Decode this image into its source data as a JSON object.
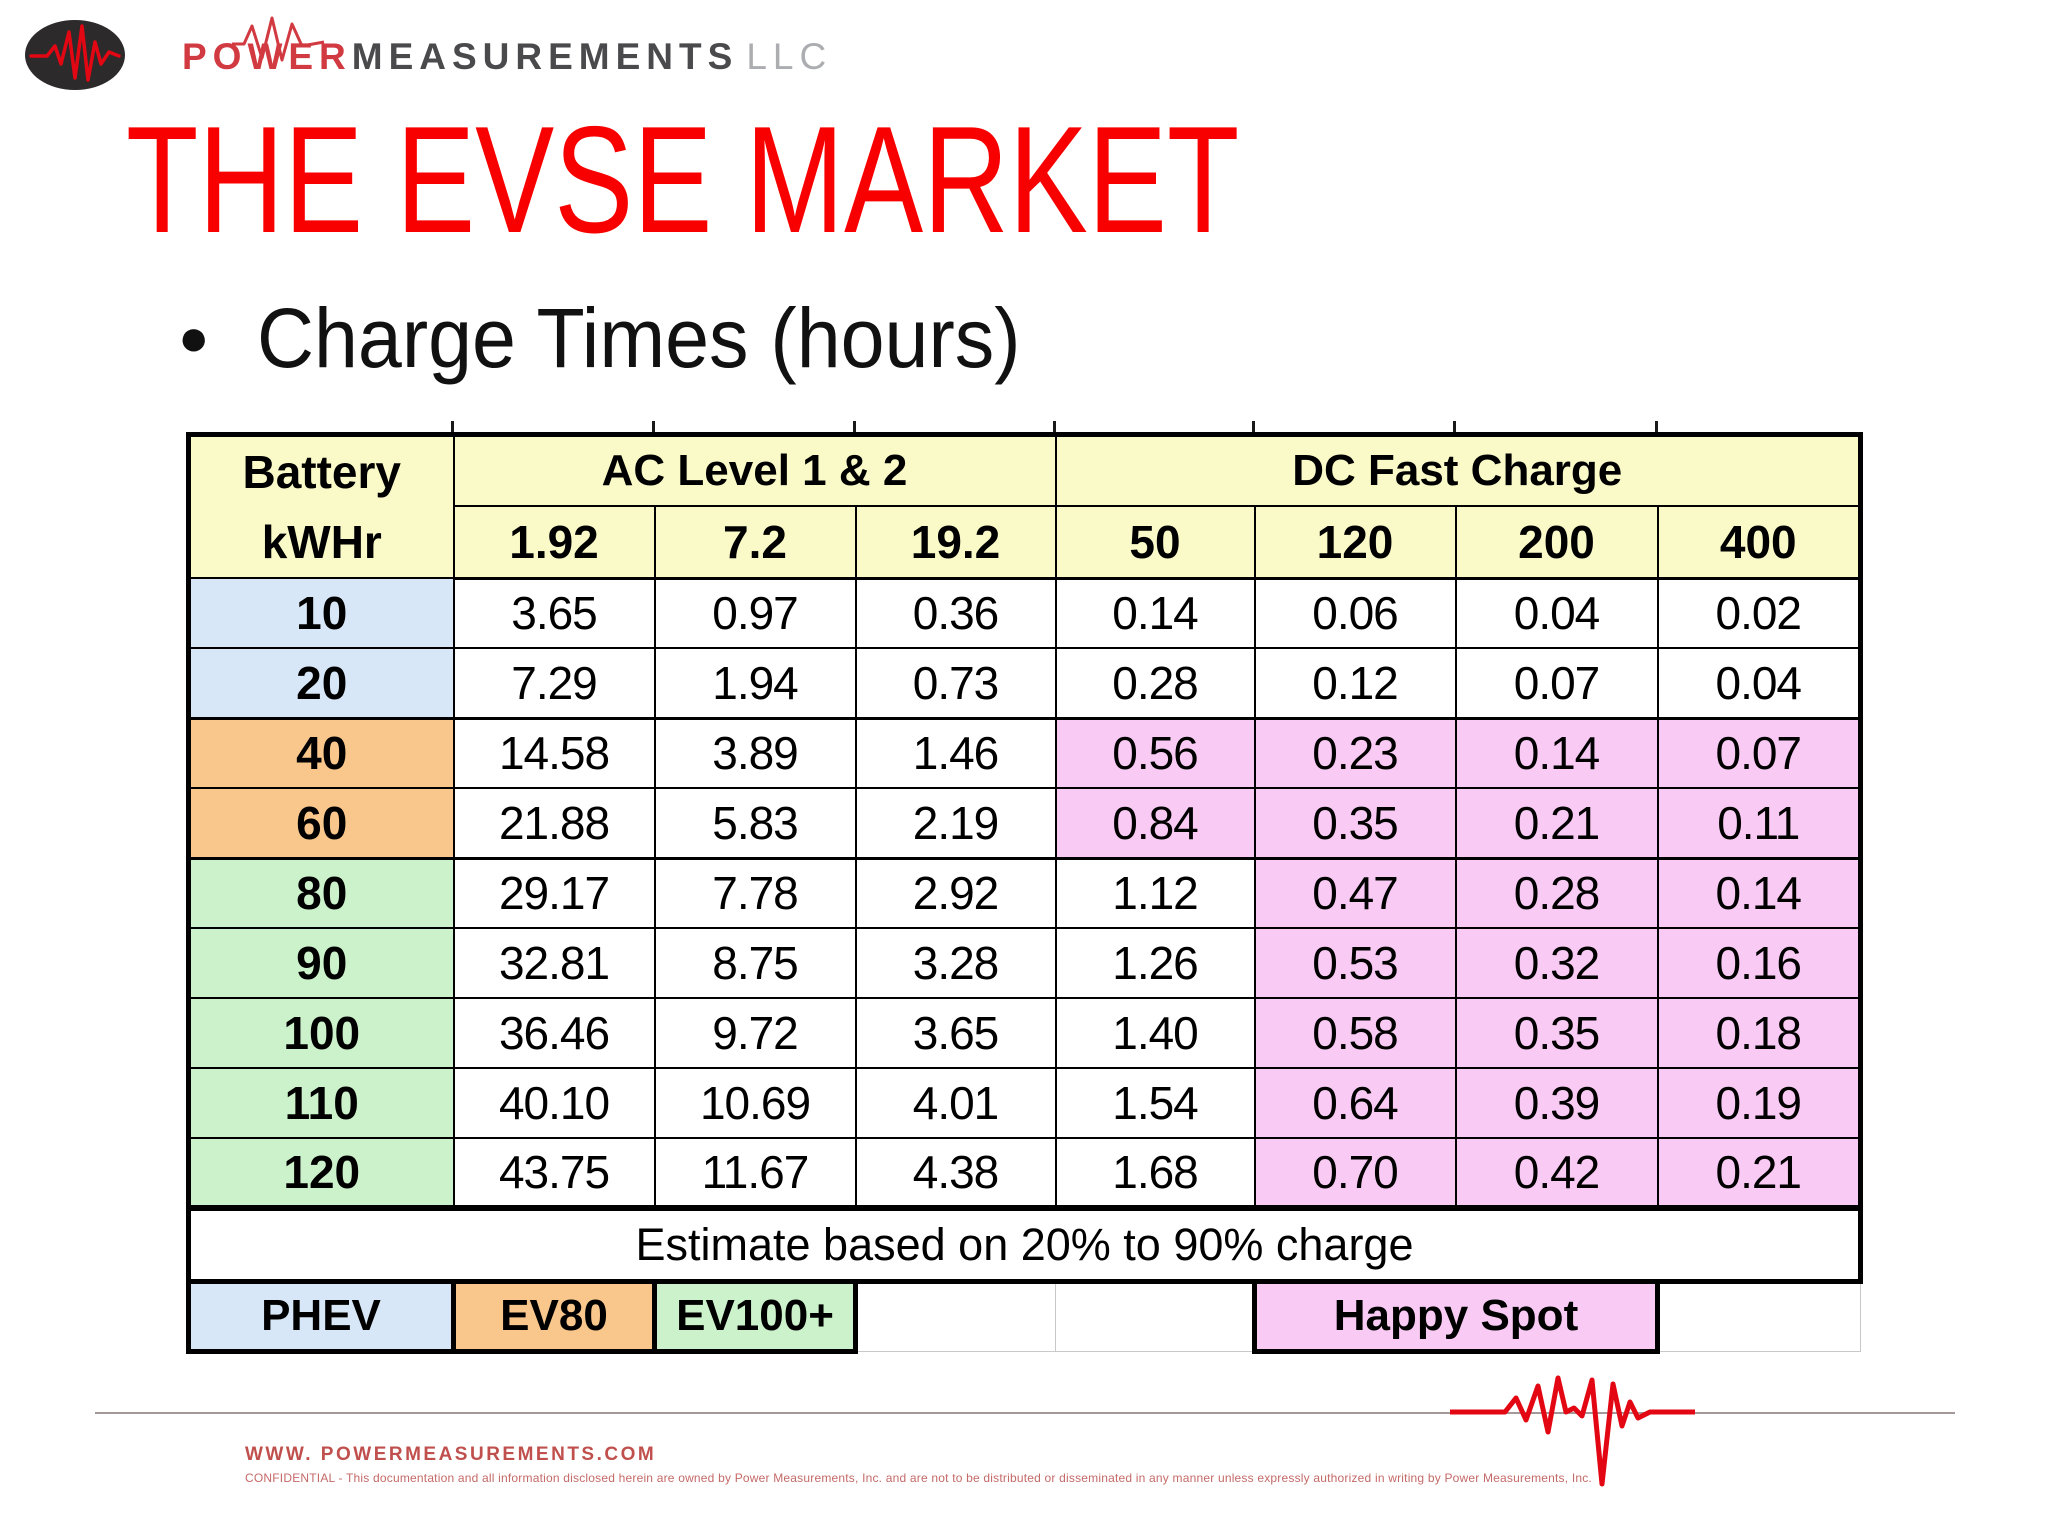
{
  "logo": {
    "power": "POWER",
    "measurements": "MEASUREMENTS",
    "llc": "LLC"
  },
  "slide": {
    "title": "THE EVSE MARKET",
    "bullet": "Charge Times (hours)"
  },
  "table": {
    "header": {
      "battery_line1": "Battery",
      "battery_line2": "kWHr",
      "group_ac": "AC Level 1 & 2",
      "group_dc": "DC Fast Charge",
      "power_cols": [
        "1.92",
        "7.2",
        "19.2",
        "50",
        "120",
        "200",
        "400"
      ]
    },
    "rows": [
      {
        "kwhr": "10",
        "group": "phev",
        "pink_start": -1,
        "values": [
          "3.65",
          "0.97",
          "0.36",
          "0.14",
          "0.06",
          "0.04",
          "0.02"
        ]
      },
      {
        "kwhr": "20",
        "group": "phev",
        "pink_start": -1,
        "values": [
          "7.29",
          "1.94",
          "0.73",
          "0.28",
          "0.12",
          "0.07",
          "0.04"
        ]
      },
      {
        "kwhr": "40",
        "group": "ev80",
        "pink_start": 3,
        "values": [
          "14.58",
          "3.89",
          "1.46",
          "0.56",
          "0.23",
          "0.14",
          "0.07"
        ]
      },
      {
        "kwhr": "60",
        "group": "ev80",
        "pink_start": 3,
        "values": [
          "21.88",
          "5.83",
          "2.19",
          "0.84",
          "0.35",
          "0.21",
          "0.11"
        ]
      },
      {
        "kwhr": "80",
        "group": "ev100",
        "pink_start": 4,
        "values": [
          "29.17",
          "7.78",
          "2.92",
          "1.12",
          "0.47",
          "0.28",
          "0.14"
        ]
      },
      {
        "kwhr": "90",
        "group": "ev100",
        "pink_start": 4,
        "values": [
          "32.81",
          "8.75",
          "3.28",
          "1.26",
          "0.53",
          "0.32",
          "0.16"
        ]
      },
      {
        "kwhr": "100",
        "group": "ev100",
        "pink_start": 4,
        "values": [
          "36.46",
          "9.72",
          "3.65",
          "1.40",
          "0.58",
          "0.35",
          "0.18"
        ]
      },
      {
        "kwhr": "110",
        "group": "ev100",
        "pink_start": 4,
        "values": [
          "40.10",
          "10.69",
          "4.01",
          "1.54",
          "0.64",
          "0.39",
          "0.19"
        ]
      },
      {
        "kwhr": "120",
        "group": "ev100",
        "pink_start": 4,
        "values": [
          "43.75",
          "11.67",
          "4.38",
          "1.68",
          "0.70",
          "0.42",
          "0.21"
        ]
      }
    ],
    "note": "Estimate based on 20% to 90% charge",
    "legend": [
      {
        "label": "PHEV",
        "kind": "phev",
        "span": 1
      },
      {
        "label": "EV80",
        "kind": "ev80",
        "span": 1
      },
      {
        "label": "EV100+",
        "kind": "ev100",
        "span": 1
      },
      {
        "label": "",
        "kind": "empty",
        "span": 1
      },
      {
        "label": "",
        "kind": "empty",
        "span": 1
      },
      {
        "label": "Happy Spot",
        "kind": "happy",
        "span": 2
      },
      {
        "label": "",
        "kind": "empty",
        "span": 1
      }
    ]
  },
  "footer": {
    "website": "WWW. POWERMEASUREMENTS.COM",
    "confidential": "CONFIDENTIAL - This documentation and all information disclosed herein are owned by Power Measurements, Inc. and are not to be distributed or disseminated in any manner unless expressly authorized in writing by Power Measurements, Inc."
  },
  "colors": {
    "title_red": "#f80000",
    "header_yellow": "#fafac8",
    "phev_blue": "#d7e7f7",
    "ev80_orange": "#f9c78c",
    "ev100_green": "#ccf2cb",
    "happy_pink": "#f9cbf4",
    "logo_red": "#d23a41",
    "footer_red": "#c0504d",
    "line_gray": "#a59898",
    "wave_red": "#e30613"
  }
}
